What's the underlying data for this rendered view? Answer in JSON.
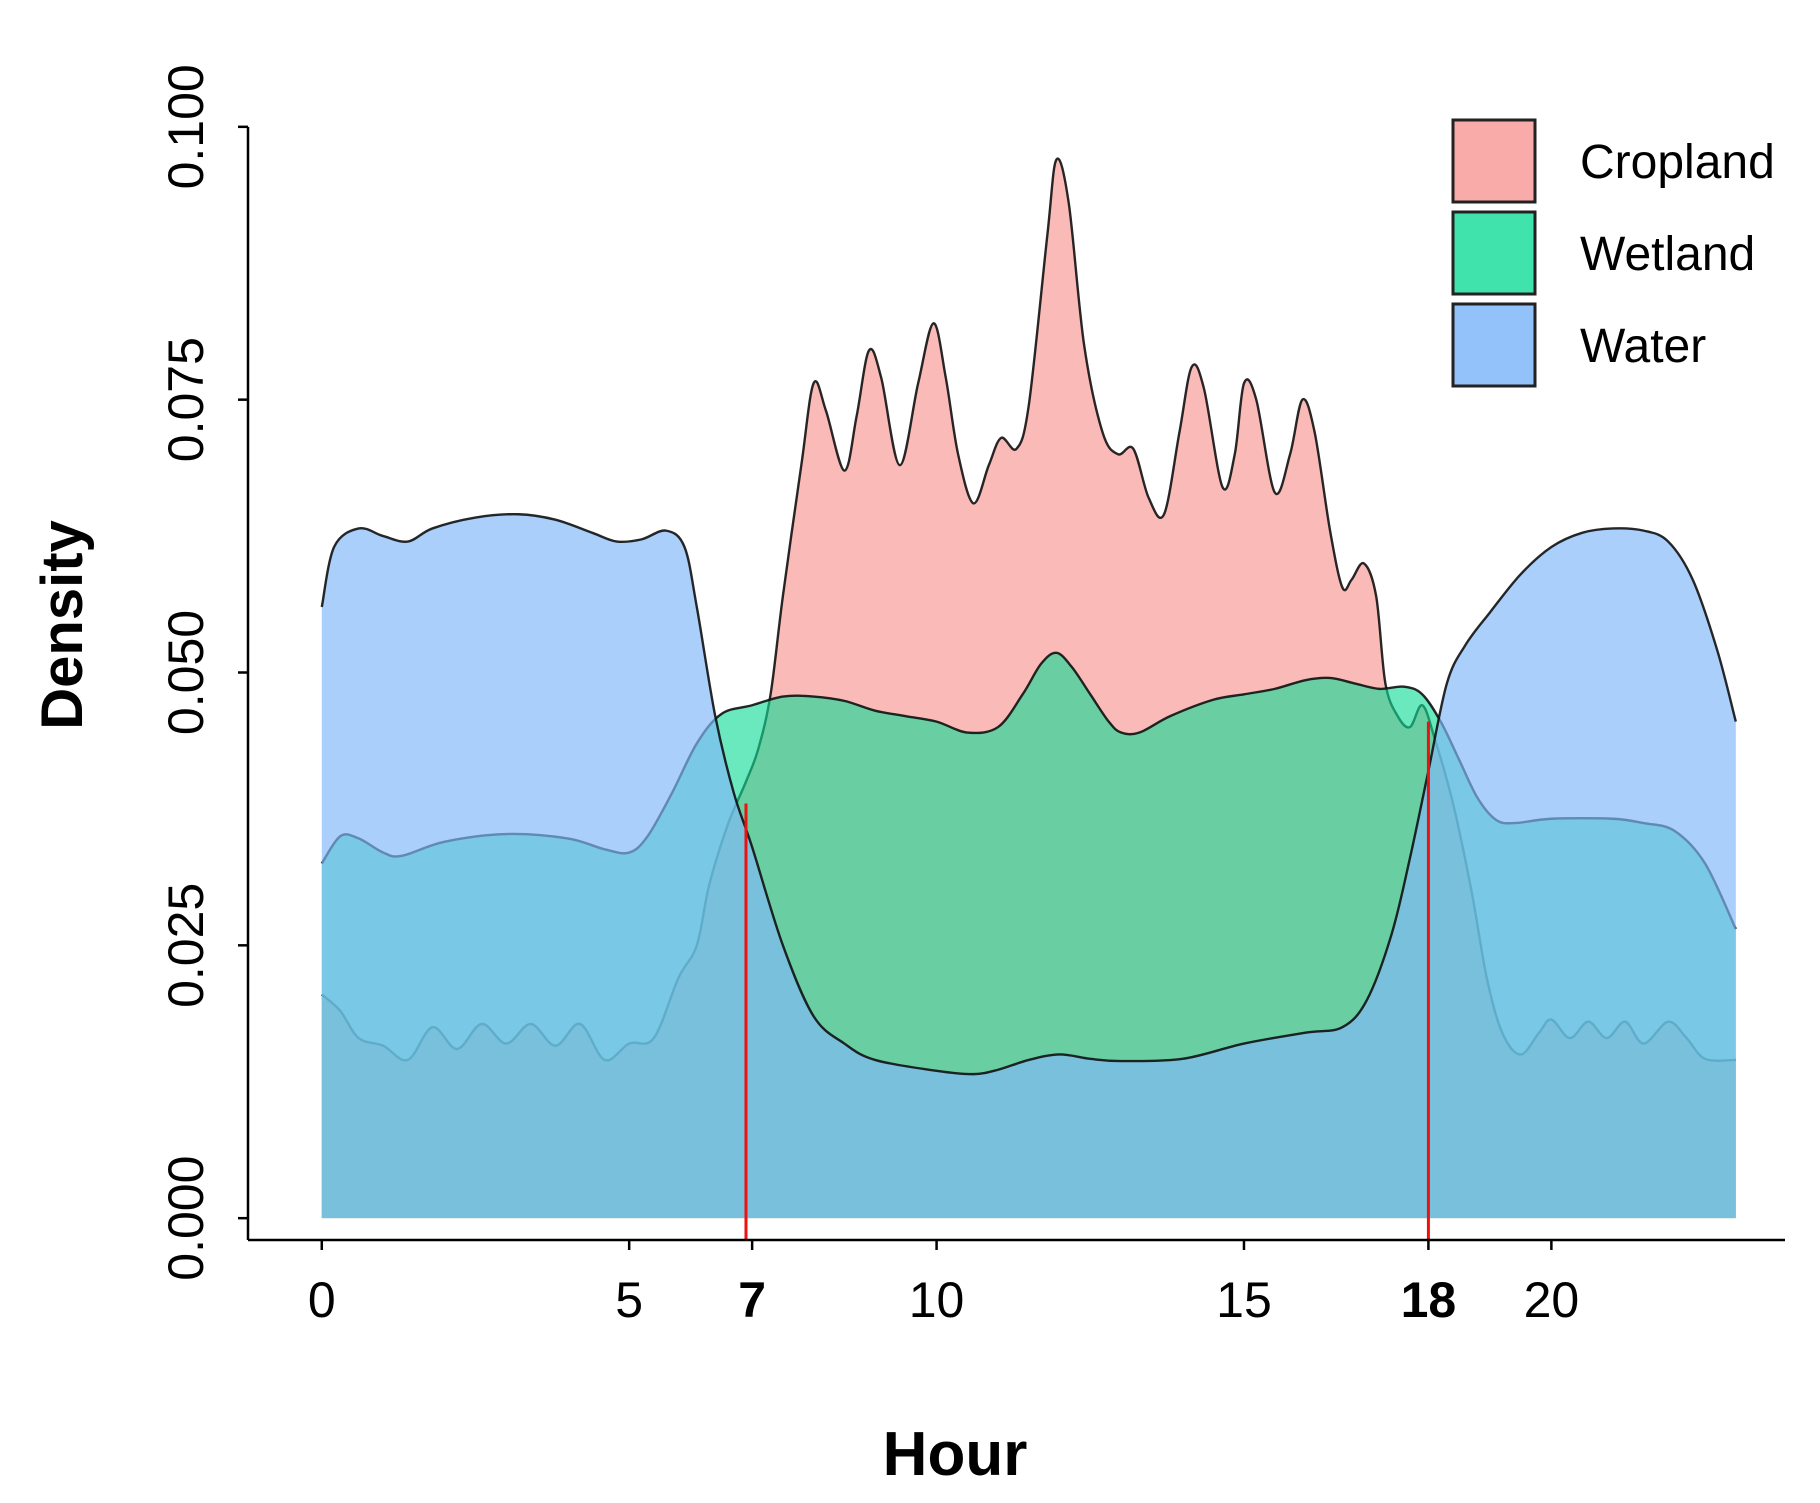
{
  "chart_data": {
    "type": "area",
    "xlabel": "Hour",
    "ylabel": "Density",
    "xlim": [
      -1.2,
      23.8
    ],
    "ylim": [
      -0.002,
      0.102
    ],
    "x_ticks": [
      {
        "value": 0,
        "label": "0",
        "bold": false
      },
      {
        "value": 5,
        "label": "5",
        "bold": false
      },
      {
        "value": 7,
        "label": "7",
        "bold": true
      },
      {
        "value": 10,
        "label": "10",
        "bold": false
      },
      {
        "value": 15,
        "label": "15",
        "bold": false
      },
      {
        "value": 18,
        "label": "18",
        "bold": true
      },
      {
        "value": 20,
        "label": "20",
        "bold": false
      }
    ],
    "y_ticks": [
      {
        "value": 0.0,
        "label": "0.000"
      },
      {
        "value": 0.025,
        "label": "0.025"
      },
      {
        "value": 0.05,
        "label": "0.050"
      },
      {
        "value": 0.075,
        "label": "0.075"
      },
      {
        "value": 0.1,
        "label": "0.100"
      }
    ],
    "reference_lines": [
      {
        "x": 6.9,
        "y_top": 0.038,
        "color": "#ee1111"
      },
      {
        "x": 18.0,
        "y_top": 0.0455,
        "color": "#ee1111"
      }
    ],
    "legend_position": "top-right",
    "series": [
      {
        "name": "Cropland",
        "fill": "#f8a8a4",
        "opacity": 0.78,
        "stroke": "#111111",
        "points": [
          [
            0,
            0.0205
          ],
          [
            0.3,
            0.019
          ],
          [
            0.6,
            0.0165
          ],
          [
            1.0,
            0.0158
          ],
          [
            1.4,
            0.0145
          ],
          [
            1.8,
            0.0175
          ],
          [
            2.2,
            0.0155
          ],
          [
            2.6,
            0.0178
          ],
          [
            3.0,
            0.016
          ],
          [
            3.4,
            0.0178
          ],
          [
            3.8,
            0.0158
          ],
          [
            4.2,
            0.0178
          ],
          [
            4.6,
            0.0145
          ],
          [
            5.0,
            0.016
          ],
          [
            5.4,
            0.0165
          ],
          [
            5.8,
            0.022
          ],
          [
            6.1,
            0.025
          ],
          [
            6.3,
            0.0305
          ],
          [
            6.6,
            0.036
          ],
          [
            6.9,
            0.04
          ],
          [
            7.1,
            0.043
          ],
          [
            7.3,
            0.048
          ],
          [
            7.5,
            0.057
          ],
          [
            7.8,
            0.069
          ],
          [
            8.0,
            0.0765
          ],
          [
            8.2,
            0.074
          ],
          [
            8.5,
            0.0685
          ],
          [
            8.7,
            0.0735
          ],
          [
            8.9,
            0.0795
          ],
          [
            9.1,
            0.077
          ],
          [
            9.4,
            0.069
          ],
          [
            9.7,
            0.0765
          ],
          [
            9.95,
            0.082
          ],
          [
            10.15,
            0.077
          ],
          [
            10.35,
            0.07
          ],
          [
            10.6,
            0.0655
          ],
          [
            10.85,
            0.069
          ],
          [
            11.05,
            0.0715
          ],
          [
            11.3,
            0.0705
          ],
          [
            11.5,
            0.0745
          ],
          [
            11.8,
            0.09
          ],
          [
            11.95,
            0.097
          ],
          [
            12.15,
            0.093
          ],
          [
            12.4,
            0.08
          ],
          [
            12.7,
            0.072
          ],
          [
            12.95,
            0.07
          ],
          [
            13.2,
            0.0705
          ],
          [
            13.45,
            0.066
          ],
          [
            13.7,
            0.0645
          ],
          [
            13.95,
            0.072
          ],
          [
            14.15,
            0.078
          ],
          [
            14.35,
            0.076
          ],
          [
            14.65,
            0.067
          ],
          [
            14.85,
            0.07
          ],
          [
            15.0,
            0.0765
          ],
          [
            15.2,
            0.075
          ],
          [
            15.5,
            0.0665
          ],
          [
            15.75,
            0.07
          ],
          [
            15.95,
            0.075
          ],
          [
            16.15,
            0.072
          ],
          [
            16.4,
            0.063
          ],
          [
            16.6,
            0.0578
          ],
          [
            16.75,
            0.0585
          ],
          [
            16.95,
            0.06
          ],
          [
            17.15,
            0.057
          ],
          [
            17.3,
            0.049
          ],
          [
            17.5,
            0.046
          ],
          [
            17.7,
            0.045
          ],
          [
            17.9,
            0.047
          ],
          [
            18.1,
            0.044
          ],
          [
            18.4,
            0.038
          ],
          [
            18.7,
            0.03
          ],
          [
            18.95,
            0.022
          ],
          [
            19.2,
            0.017
          ],
          [
            19.5,
            0.015
          ],
          [
            19.8,
            0.017
          ],
          [
            20.0,
            0.0182
          ],
          [
            20.3,
            0.0165
          ],
          [
            20.6,
            0.018
          ],
          [
            20.9,
            0.0165
          ],
          [
            21.2,
            0.018
          ],
          [
            21.5,
            0.016
          ],
          [
            21.9,
            0.018
          ],
          [
            22.2,
            0.0165
          ],
          [
            22.5,
            0.0146
          ],
          [
            23.0,
            0.0145
          ]
        ]
      },
      {
        "name": "Wetland",
        "fill": "#10dc96",
        "opacity": 0.62,
        "stroke": "#111111",
        "points": [
          [
            0,
            0.0325
          ],
          [
            0.3,
            0.035
          ],
          [
            0.6,
            0.0348
          ],
          [
            1.0,
            0.0335
          ],
          [
            1.3,
            0.0332
          ],
          [
            2.0,
            0.0345
          ],
          [
            3.0,
            0.0352
          ],
          [
            4.0,
            0.0348
          ],
          [
            4.6,
            0.0338
          ],
          [
            5.0,
            0.0335
          ],
          [
            5.3,
            0.035
          ],
          [
            5.7,
            0.039
          ],
          [
            6.1,
            0.0435
          ],
          [
            6.5,
            0.0462
          ],
          [
            7.0,
            0.047
          ],
          [
            7.5,
            0.0478
          ],
          [
            8.0,
            0.0478
          ],
          [
            8.5,
            0.0474
          ],
          [
            9.0,
            0.0465
          ],
          [
            9.5,
            0.046
          ],
          [
            10.0,
            0.0455
          ],
          [
            10.5,
            0.0445
          ],
          [
            11.0,
            0.045
          ],
          [
            11.4,
            0.048
          ],
          [
            11.7,
            0.0508
          ],
          [
            11.95,
            0.0518
          ],
          [
            12.2,
            0.0505
          ],
          [
            12.5,
            0.048
          ],
          [
            12.8,
            0.0455
          ],
          [
            13.0,
            0.0445
          ],
          [
            13.3,
            0.0445
          ],
          [
            13.8,
            0.046
          ],
          [
            14.5,
            0.0475
          ],
          [
            15.0,
            0.048
          ],
          [
            15.5,
            0.0485
          ],
          [
            16.0,
            0.0493
          ],
          [
            16.4,
            0.0495
          ],
          [
            16.8,
            0.049
          ],
          [
            17.2,
            0.0485
          ],
          [
            17.6,
            0.0487
          ],
          [
            17.9,
            0.048
          ],
          [
            18.2,
            0.0455
          ],
          [
            18.5,
            0.042
          ],
          [
            18.8,
            0.0385
          ],
          [
            19.1,
            0.0365
          ],
          [
            19.4,
            0.0362
          ],
          [
            20.0,
            0.0366
          ],
          [
            21.0,
            0.0366
          ],
          [
            21.5,
            0.0362
          ],
          [
            22.0,
            0.0355
          ],
          [
            22.5,
            0.0325
          ],
          [
            23.0,
            0.0265
          ]
        ]
      },
      {
        "name": "Water",
        "fill": "#80b8f8",
        "opacity": 0.68,
        "stroke": "#111111",
        "points": [
          [
            0,
            0.056
          ],
          [
            0.2,
            0.0615
          ],
          [
            0.6,
            0.0632
          ],
          [
            1.0,
            0.0625
          ],
          [
            1.4,
            0.062
          ],
          [
            1.8,
            0.0632
          ],
          [
            2.5,
            0.0642
          ],
          [
            3.2,
            0.0645
          ],
          [
            3.8,
            0.064
          ],
          [
            4.4,
            0.0628
          ],
          [
            4.8,
            0.062
          ],
          [
            5.2,
            0.0622
          ],
          [
            5.6,
            0.063
          ],
          [
            5.9,
            0.0615
          ],
          [
            6.1,
            0.056
          ],
          [
            6.4,
            0.046
          ],
          [
            6.7,
            0.039
          ],
          [
            7.0,
            0.034
          ],
          [
            7.5,
            0.025
          ],
          [
            8.0,
            0.0185
          ],
          [
            8.5,
            0.016
          ],
          [
            9.0,
            0.0145
          ],
          [
            10.0,
            0.0135
          ],
          [
            10.6,
            0.0132
          ],
          [
            11.0,
            0.0136
          ],
          [
            11.5,
            0.0145
          ],
          [
            12.0,
            0.015
          ],
          [
            12.5,
            0.0146
          ],
          [
            13.0,
            0.0144
          ],
          [
            14.0,
            0.0146
          ],
          [
            15.0,
            0.016
          ],
          [
            16.0,
            0.017
          ],
          [
            16.6,
            0.0175
          ],
          [
            17.0,
            0.02
          ],
          [
            17.4,
            0.026
          ],
          [
            17.7,
            0.033
          ],
          [
            18.0,
            0.041
          ],
          [
            18.3,
            0.049
          ],
          [
            18.6,
            0.0525
          ],
          [
            19.0,
            0.0555
          ],
          [
            19.5,
            0.059
          ],
          [
            20.0,
            0.0615
          ],
          [
            20.5,
            0.0628
          ],
          [
            21.0,
            0.0632
          ],
          [
            21.5,
            0.063
          ],
          [
            21.9,
            0.062
          ],
          [
            22.3,
            0.0585
          ],
          [
            22.7,
            0.052
          ],
          [
            23.0,
            0.0455
          ]
        ]
      }
    ]
  }
}
